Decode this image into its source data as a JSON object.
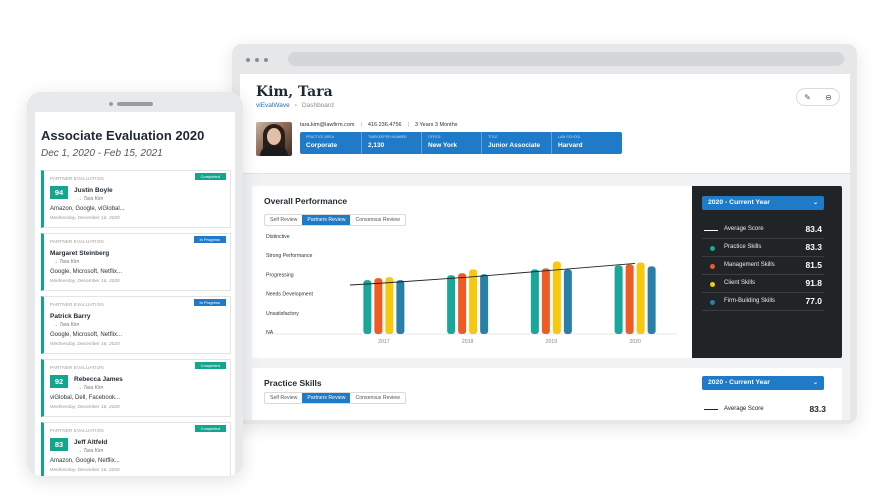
{
  "desktop": {
    "employee": {
      "name": "Kim, Tara",
      "breadcrumb": [
        "viEvalWave",
        "Dashboard"
      ],
      "email": "tara.kim@lawfirm.com",
      "phone": "416.236.4756",
      "tenure": "3 Years 3 Months",
      "info": [
        {
          "label": "PRACTICE AREA",
          "value": "Corporate"
        },
        {
          "label": "TIMEKEEPER NUMBER",
          "value": "2,130"
        },
        {
          "label": "OFFICE",
          "value": "New York"
        },
        {
          "label": "TITLE",
          "value": "Junior Associate"
        },
        {
          "label": "LAW SCHOOL",
          "value": "Harvard"
        }
      ]
    },
    "header_icons": [
      "pencil-icon",
      "menu-icon"
    ],
    "overall": {
      "title": "Overall Performance",
      "tabs": [
        {
          "label": "Self Review",
          "active": false
        },
        {
          "label": "Partners Review",
          "active": true
        },
        {
          "label": "Consensus Review",
          "active": false
        }
      ],
      "period": "2020 - Current Year",
      "legend": [
        {
          "name": "Average Score",
          "value": "83.4",
          "marker": "line",
          "color": "#ffffff"
        },
        {
          "name": "Practice Skills",
          "value": "83.3",
          "marker": "dot",
          "color": "#17a89a"
        },
        {
          "name": "Management Skills",
          "value": "81.5",
          "marker": "dot",
          "color": "#ef5b25"
        },
        {
          "name": "Client Skills",
          "value": "91.8",
          "marker": "dot",
          "color": "#f6c90e"
        },
        {
          "name": "Firm-Building Skills",
          "value": "77.0",
          "marker": "dot",
          "color": "#2a7fa8"
        }
      ]
    },
    "practice": {
      "title": "Practice Skills",
      "tabs": [
        {
          "label": "Self Review",
          "active": false
        },
        {
          "label": "Partners Review",
          "active": true
        },
        {
          "label": "Consensus Review",
          "active": false
        }
      ],
      "period": "2020 - Current Year",
      "avg_label": "Average Score",
      "avg_value": "83.3"
    }
  },
  "chart_data": {
    "type": "bar",
    "categories": [
      "2017",
      "2018",
      "2019",
      "2020"
    ],
    "y_tick_labels": [
      "Distinctive",
      "Strong Performance",
      "Progressing",
      "Needs Development",
      "Unsatisfactory",
      "NA"
    ],
    "ylim": [
      0,
      100
    ],
    "series": [
      {
        "name": "Practice Skills",
        "color": "#17a89a",
        "values": [
          55,
          60,
          66,
          70
        ]
      },
      {
        "name": "Management Skills",
        "color": "#ef5b25",
        "values": [
          57,
          62,
          67,
          71
        ]
      },
      {
        "name": "Client Skills",
        "color": "#f6c90e",
        "values": [
          58,
          66,
          74,
          73
        ]
      },
      {
        "name": "Firm-Building Skills",
        "color": "#2a7fa8",
        "values": [
          55,
          61,
          66,
          69
        ]
      }
    ],
    "average_line": {
      "name": "Average Score",
      "values": [
        52,
        58,
        65,
        72
      ]
    }
  },
  "mobile": {
    "title": "Associate Evaluation 2020",
    "date_range": "Dec 1, 2020 - Feb 15, 2021",
    "evaluations": [
      {
        "type": "PARTNER EVALUATION",
        "status": "Completed",
        "status_color": "green",
        "score": "94",
        "name": "Justin Boyle",
        "by": "Tara Kim",
        "firms": "Amazon, Google, viGlobal...",
        "date": "Wednesday, December 16, 2020"
      },
      {
        "type": "PARTNER EVALUATION",
        "status": "In Progress",
        "status_color": "blue",
        "score": "",
        "name": "Margaret Steinberg",
        "by": "Tara Kim",
        "firms": "Google, Microsoft, Netflix...",
        "date": "Wednesday, December 16, 2020"
      },
      {
        "type": "PARTNER EVALUATION",
        "status": "In Progress",
        "status_color": "blue",
        "score": "",
        "name": "Patrick Barry",
        "by": "Tara Kim",
        "firms": "Google, Microsoft, Netflix...",
        "date": "Wednesday, December 16, 2020"
      },
      {
        "type": "PARTNER EVALUATION",
        "status": "Completed",
        "status_color": "green",
        "score": "92",
        "name": "Rebecca James",
        "by": "Tara Kim",
        "firms": "viGlobal, Dell, Facebook...",
        "date": "Wednesday, December 16, 2020"
      },
      {
        "type": "PARTNER EVALUATION",
        "status": "Completed",
        "status_color": "green",
        "score": "83",
        "name": "Jeff Altfeld",
        "by": "Tara Kim",
        "firms": "Amazon, Google, Netflix...",
        "date": "Wednesday, December 16, 2020"
      }
    ]
  }
}
